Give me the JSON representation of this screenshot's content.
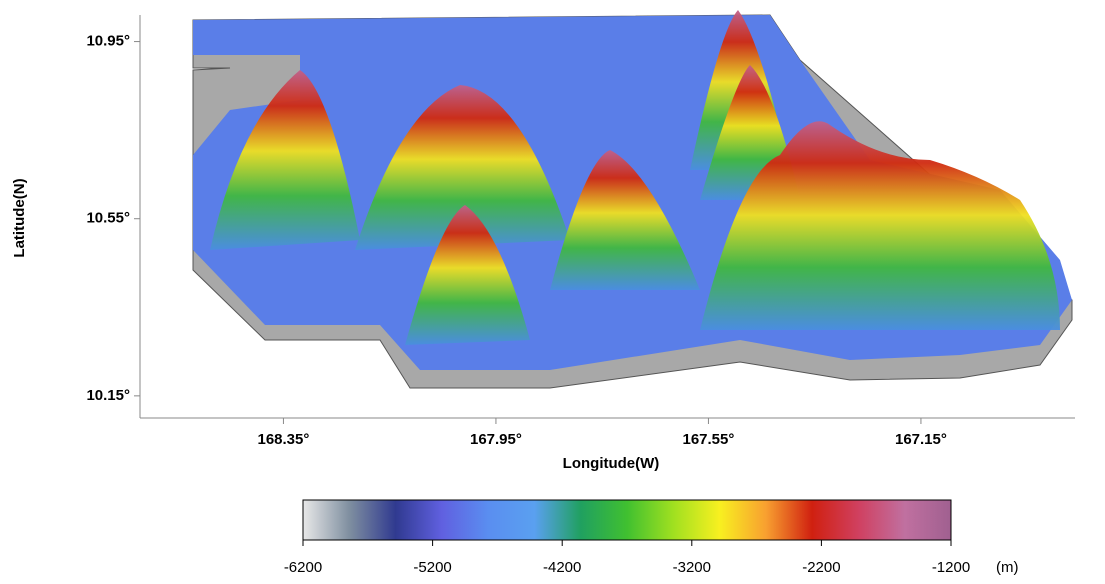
{
  "chart_data": {
    "type": "terrain",
    "x_label": "Longitude(W)",
    "y_label": "Latitude(N)",
    "xlim": [
      168.62,
      166.86
    ],
    "ylim": [
      10.1,
      11.01
    ],
    "xticks": [
      {
        "value": 168.35,
        "label": "168.35°"
      },
      {
        "value": 167.95,
        "label": "167.95°"
      },
      {
        "value": 167.55,
        "label": "167.55°"
      },
      {
        "value": 167.15,
        "label": "167.15°"
      }
    ],
    "yticks": [
      {
        "value": 10.15,
        "label": "10.15°"
      },
      {
        "value": 10.55,
        "label": "10.55°"
      },
      {
        "value": 10.95,
        "label": "10.95°"
      }
    ],
    "colorbar": {
      "lim": [
        -6200,
        -1200
      ],
      "ticks": [
        -6200,
        -5200,
        -4200,
        -3200,
        -2200,
        -1200
      ],
      "unit": "(m)",
      "colors": [
        "#e8e8e8",
        "#7f8fa0",
        "#303a90",
        "#6060e0",
        "#5a8ef0",
        "#5aa0f0",
        "#20a060",
        "#40c030",
        "#a0e020",
        "#f8f020",
        "#f8a030",
        "#d02010",
        "#d04060",
        "#c070a0",
        "#a06090"
      ]
    }
  }
}
